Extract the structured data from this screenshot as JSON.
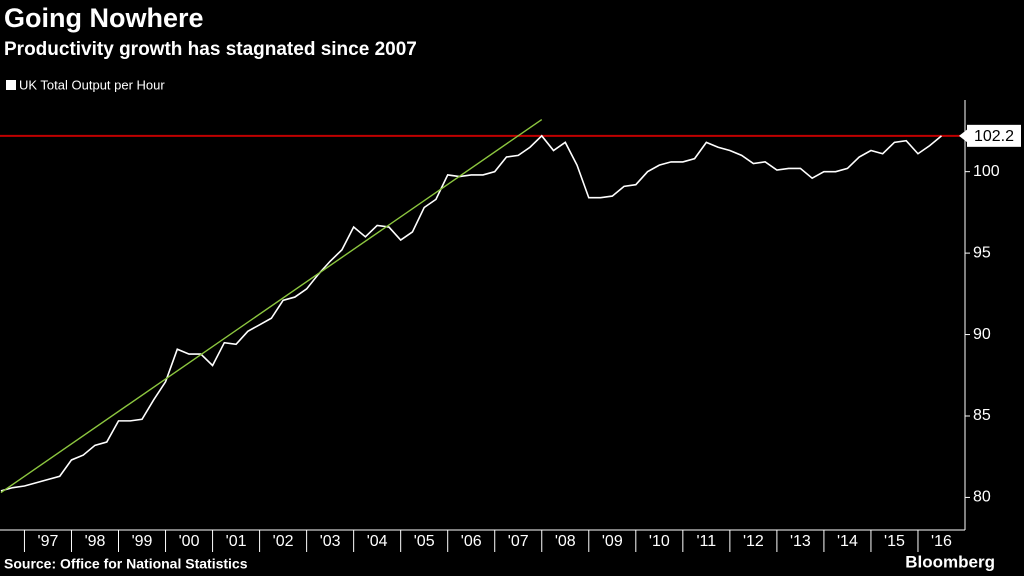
{
  "chart_data": {
    "type": "line",
    "title": "Going Nowhere",
    "subtitle": "Productivity growth has stagnated since 2007",
    "source": "Source: Office for National Statistics",
    "brand": "Bloomberg",
    "x": [
      1996.5,
      1996.75,
      1997,
      1997.25,
      1997.5,
      1997.75,
      1998,
      1998.25,
      1998.5,
      1998.75,
      1999,
      1999.25,
      1999.5,
      1999.75,
      2000,
      2000.25,
      2000.5,
      2000.75,
      2001,
      2001.25,
      2001.5,
      2001.75,
      2002,
      2002.25,
      2002.5,
      2002.75,
      2003,
      2003.25,
      2003.5,
      2003.75,
      2004,
      2004.25,
      2004.5,
      2004.75,
      2005,
      2005.25,
      2005.5,
      2005.75,
      2006,
      2006.25,
      2006.5,
      2006.75,
      2007,
      2007.25,
      2007.5,
      2007.75,
      2008,
      2008.25,
      2008.5,
      2008.75,
      2009,
      2009.25,
      2009.5,
      2009.75,
      2010,
      2010.25,
      2010.5,
      2010.75,
      2011,
      2011.25,
      2011.5,
      2011.75,
      2012,
      2012.25,
      2012.5,
      2012.75,
      2013,
      2013.25,
      2013.5,
      2013.75,
      2014,
      2014.25,
      2014.5,
      2014.75,
      2015,
      2015.25,
      2015.5,
      2015.75,
      2016,
      2016.25,
      2016.5
    ],
    "series": [
      {
        "name": "UK Total Output per Hour",
        "color": "#ffffff",
        "values": [
          80.4,
          80.6,
          80.7,
          80.9,
          81.1,
          81.3,
          82.3,
          82.6,
          83.2,
          83.4,
          84.7,
          84.7,
          84.8,
          86.0,
          87.1,
          89.1,
          88.8,
          88.8,
          88.1,
          89.5,
          89.4,
          90.2,
          90.6,
          91.0,
          92.1,
          92.3,
          92.8,
          93.7,
          94.5,
          95.2,
          96.6,
          96.0,
          96.7,
          96.6,
          95.8,
          96.3,
          97.8,
          98.3,
          99.8,
          99.7,
          99.8,
          99.8,
          100.0,
          100.9,
          101.0,
          101.5,
          102.2,
          101.3,
          101.8,
          100.4,
          98.4,
          98.4,
          98.5,
          99.1,
          99.2,
          100.0,
          100.4,
          100.6,
          100.6,
          100.8,
          101.8,
          101.5,
          101.3,
          101.0,
          100.5,
          100.6,
          100.1,
          100.2,
          100.2,
          99.6,
          100.0,
          100.0,
          100.2,
          100.9,
          101.3,
          101.1,
          101.8,
          101.9,
          101.1,
          101.6,
          102.2
        ]
      },
      {
        "color": "#8cc63f",
        "x": [
          1996.5,
          2008.0
        ],
        "values": [
          80.3,
          103.2
        ]
      }
    ],
    "highlight_color": "#c00000",
    "xlim": [
      1996.48,
      2017
    ],
    "xticks": [
      {
        "value": 1997.5,
        "label": "'97"
      },
      {
        "value": 1998.5,
        "label": "'98"
      },
      {
        "value": 1999.5,
        "label": "'99"
      },
      {
        "value": 2000.5,
        "label": "'00"
      },
      {
        "value": 2001.5,
        "label": "'01"
      },
      {
        "value": 2002.5,
        "label": "'02"
      },
      {
        "value": 2003.5,
        "label": "'03"
      },
      {
        "value": 2004.5,
        "label": "'04"
      },
      {
        "value": 2005.5,
        "label": "'05"
      },
      {
        "value": 2006.5,
        "label": "'06"
      },
      {
        "value": 2007.5,
        "label": "'07"
      },
      {
        "value": 2008.5,
        "label": "'08"
      },
      {
        "value": 2009.5,
        "label": "'09"
      },
      {
        "value": 2010.5,
        "label": "'10"
      },
      {
        "value": 2011.5,
        "label": "'11"
      },
      {
        "value": 2012.5,
        "label": "'12"
      },
      {
        "value": 2013.5,
        "label": "'13"
      },
      {
        "value": 2014.5,
        "label": "'14"
      },
      {
        "value": 2015.5,
        "label": "'15"
      },
      {
        "value": 2016.5,
        "label": "'16"
      }
    ],
    "ylim": [
      78,
      104.4
    ],
    "yticks": [
      80,
      85,
      90,
      95,
      100
    ]
  }
}
